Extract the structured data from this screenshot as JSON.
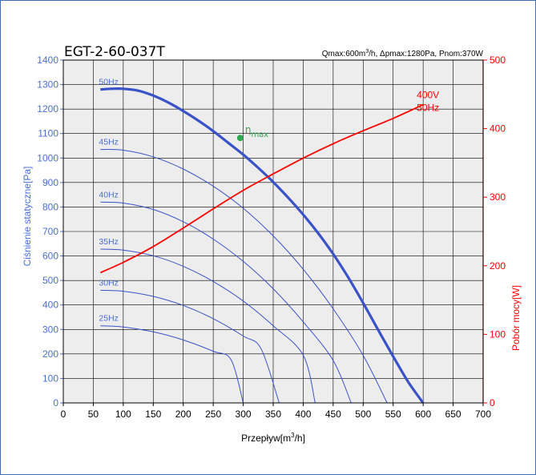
{
  "chart_data": {
    "type": "line",
    "title": "EGT-2-60-037T",
    "subtitle_parts": {
      "q": "Qmax:600m",
      "q_sup": "3",
      "rest": "/h, Δpmax:1280Pa, Pnom:370W"
    },
    "xlabel": {
      "main": "Przepływ[m",
      "sup": "3",
      "tail": "/h]"
    },
    "ylabel": "Ciśnienie statyczne[Pa]",
    "y2label": "Pobór mocy[W]",
    "xlim": [
      0,
      700
    ],
    "ylim": [
      0,
      1400
    ],
    "y2lim": [
      0,
      500
    ],
    "grid": true,
    "x_ticks": [
      "0",
      "50",
      "100",
      "150",
      "200",
      "250",
      "300",
      "350",
      "400",
      "450",
      "500",
      "550",
      "600",
      "650",
      "700"
    ],
    "y_ticks": [
      "0",
      "100",
      "200",
      "300",
      "400",
      "500",
      "600",
      "700",
      "800",
      "900",
      "1000",
      "1100",
      "1200",
      "1300",
      "1400"
    ],
    "y2_ticks": [
      "0",
      "100",
      "200",
      "300",
      "400",
      "500"
    ],
    "series": [
      {
        "name": "50Hz",
        "axis": "left",
        "x": [
          62,
          80,
          100,
          125,
          150,
          175,
          200,
          225,
          250,
          275,
          300,
          325,
          350,
          375,
          400,
          425,
          450,
          475,
          500,
          525,
          550,
          575,
          600
        ],
        "y": [
          1280,
          1283,
          1283,
          1275,
          1255,
          1227,
          1192,
          1153,
          1110,
          1062,
          1014,
          960,
          902,
          838,
          769,
          693,
          608,
          513,
          408,
          298,
          190,
          86,
          0
        ]
      },
      {
        "name": "45Hz",
        "axis": "left",
        "x": [
          62,
          100,
          150,
          200,
          250,
          300,
          350,
          400,
          450,
          500,
          540
        ],
        "y": [
          1035,
          1032,
          1005,
          955,
          885,
          795,
          682,
          546,
          384,
          194,
          0
        ]
      },
      {
        "name": "40Hz",
        "axis": "left",
        "x": [
          62,
          100,
          150,
          200,
          250,
          300,
          350,
          400,
          450,
          480
        ],
        "y": [
          820,
          816,
          790,
          740,
          669,
          578,
          466,
          331,
          173,
          0
        ]
      },
      {
        "name": "35Hz",
        "axis": "left",
        "x": [
          62,
          100,
          150,
          200,
          250,
          300,
          350,
          400,
          420
        ],
        "y": [
          628,
          624,
          601,
          558,
          496,
          416,
          315,
          195,
          0
        ]
      },
      {
        "name": "30Hz",
        "axis": "left",
        "x": [
          62,
          100,
          150,
          200,
          250,
          300,
          330,
          360
        ],
        "y": [
          460,
          456,
          435,
          398,
          344,
          273,
          220,
          0
        ]
      },
      {
        "name": "25Hz",
        "axis": "left",
        "x": [
          62,
          100,
          150,
          200,
          250,
          280,
          300
        ],
        "y": [
          315,
          310,
          290,
          257,
          211,
          175,
          0
        ]
      },
      {
        "name": "400V 50Hz",
        "axis": "right",
        "x": [
          62,
          100,
          150,
          200,
          250,
          300,
          350,
          400,
          450,
          500,
          550,
          600
        ],
        "y": [
          190,
          205,
          228,
          255,
          283,
          310,
          334,
          357,
          378,
          397,
          415,
          435
        ]
      }
    ],
    "series_labels": {
      "50Hz": "50Hz",
      "45Hz": "45Hz",
      "40Hz": "40Hz",
      "35Hz": "35Hz",
      "30Hz": "30Hz",
      "25Hz": "25Hz",
      "power_line1": "400V",
      "power_line2": "50Hz"
    },
    "eta_point": {
      "label": "η",
      "sub": "max",
      "x": 295,
      "y": 1082
    },
    "colors": {
      "left_axis": "#4a6fd0",
      "right_axis": "#ff0000",
      "curve": "#3a52c8",
      "grid": "#000000",
      "plot_bg": "#ededed",
      "eta": "#2fa84f",
      "frame": "#3f6fb5"
    }
  }
}
